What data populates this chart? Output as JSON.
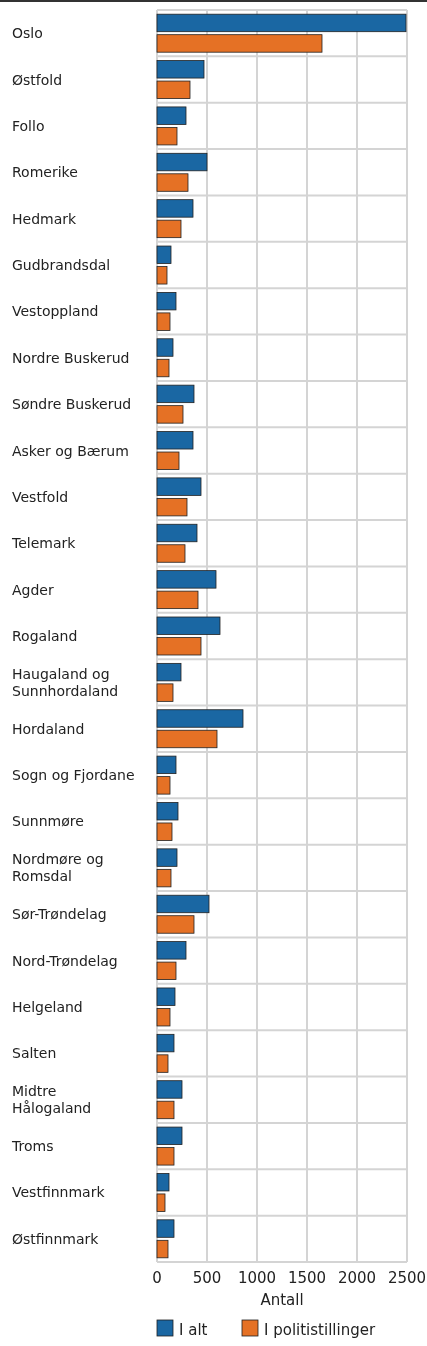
{
  "chart_data": {
    "type": "bar",
    "orientation": "horizontal",
    "xlabel": "Antall",
    "categories": [
      "Oslo",
      "Østfold",
      "Follo",
      "Romerike",
      "Hedmark",
      "Gudbrandsdal",
      "Vestoppland",
      "Nordre Buskerud",
      "Søndre Buskerud",
      "Asker og Bærum",
      "Vestfold",
      "Telemark",
      "Agder",
      "Rogaland",
      "Haugaland og Sunnhordaland",
      "Hordaland",
      "Sogn og Fjordane",
      "Sunnmøre",
      "Nordmøre og Romsdal",
      "Sør-Trøndelag",
      "Nord-Trøndelag",
      "Helgeland",
      "Salten",
      "Midtre Hålogaland",
      "Troms",
      "Vestfinnmark",
      "Østfinnmark"
    ],
    "series": [
      {
        "name": "I alt",
        "color": "#1a67a3",
        "values": [
          2490,
          470,
          290,
          500,
          360,
          140,
          190,
          160,
          370,
          360,
          440,
          400,
          590,
          630,
          240,
          860,
          190,
          210,
          200,
          520,
          290,
          180,
          170,
          250,
          250,
          120,
          170
        ]
      },
      {
        "name": "I politistillinger",
        "color": "#e57125",
        "values": [
          1650,
          330,
          200,
          310,
          240,
          100,
          130,
          120,
          260,
          220,
          300,
          280,
          410,
          440,
          160,
          600,
          130,
          150,
          140,
          370,
          190,
          130,
          110,
          170,
          170,
          80,
          110
        ]
      }
    ],
    "xlim": [
      0,
      2500
    ],
    "xticks": [
      0,
      500,
      1000,
      1500,
      2000,
      2500
    ],
    "grid": true,
    "legend": "bottom"
  }
}
